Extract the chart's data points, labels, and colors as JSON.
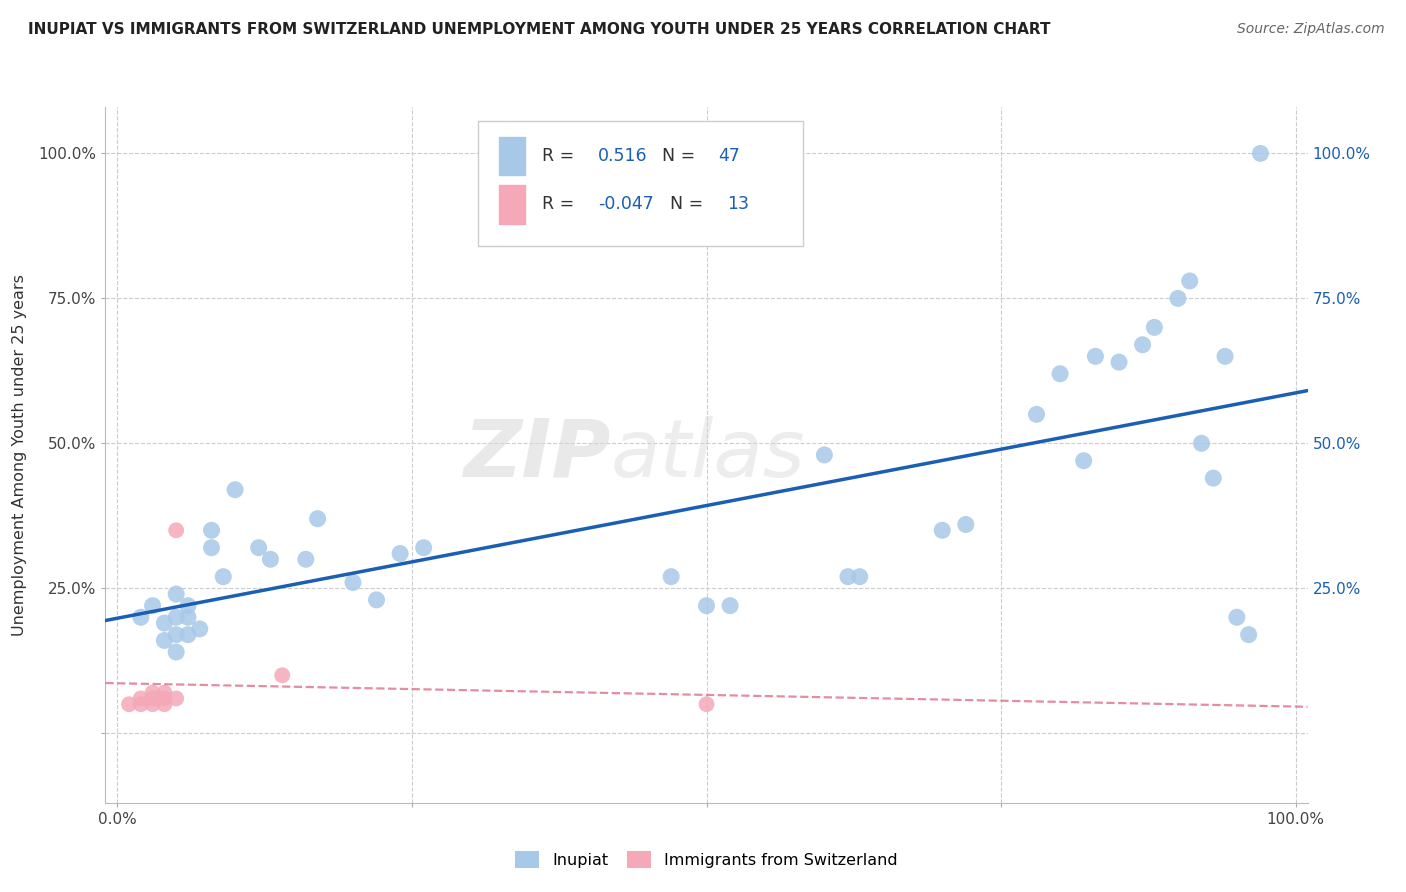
{
  "title": "INUPIAT VS IMMIGRANTS FROM SWITZERLAND UNEMPLOYMENT AMONG YOUTH UNDER 25 YEARS CORRELATION CHART",
  "source": "Source: ZipAtlas.com",
  "ylabel": "Unemployment Among Youth under 25 years",
  "xlim": [
    -0.01,
    1.01
  ],
  "ylim": [
    -0.12,
    1.08
  ],
  "ytick_values": [
    0.0,
    0.25,
    0.5,
    0.75,
    1.0
  ],
  "xtick_values": [
    0.0,
    0.25,
    0.5,
    0.75,
    1.0
  ],
  "inupiat_R": "0.516",
  "inupiat_N": "47",
  "swiss_R": "-0.047",
  "swiss_N": "13",
  "inupiat_color": "#a8c8e8",
  "swiss_color": "#f4a8b8",
  "inupiat_line_color": "#1a5fb4",
  "swiss_line_color": "#e07890",
  "blue_text": "#1a5fb4",
  "watermark": "ZIPatlas",
  "inupiat_x": [
    0.02,
    0.03,
    0.04,
    0.04,
    0.05,
    0.05,
    0.05,
    0.05,
    0.06,
    0.06,
    0.06,
    0.07,
    0.08,
    0.08,
    0.09,
    0.1,
    0.12,
    0.13,
    0.16,
    0.17,
    0.2,
    0.22,
    0.24,
    0.26,
    0.47,
    0.5,
    0.52,
    0.6,
    0.62,
    0.63,
    0.7,
    0.72,
    0.78,
    0.8,
    0.82,
    0.83,
    0.85,
    0.87,
    0.88,
    0.9,
    0.91,
    0.92,
    0.93,
    0.94,
    0.95,
    0.96,
    0.97
  ],
  "inupiat_y": [
    0.2,
    0.22,
    0.16,
    0.19,
    0.14,
    0.17,
    0.2,
    0.24,
    0.17,
    0.2,
    0.22,
    0.18,
    0.32,
    0.35,
    0.27,
    0.42,
    0.32,
    0.3,
    0.3,
    0.37,
    0.26,
    0.23,
    0.31,
    0.32,
    0.27,
    0.22,
    0.22,
    0.48,
    0.27,
    0.27,
    0.35,
    0.36,
    0.55,
    0.62,
    0.47,
    0.65,
    0.64,
    0.67,
    0.7,
    0.75,
    0.78,
    0.5,
    0.44,
    0.65,
    0.2,
    0.17,
    1.0
  ],
  "swiss_x": [
    0.01,
    0.02,
    0.02,
    0.03,
    0.03,
    0.03,
    0.04,
    0.04,
    0.04,
    0.05,
    0.05,
    0.14,
    0.5
  ],
  "swiss_y": [
    0.05,
    0.05,
    0.06,
    0.05,
    0.06,
    0.07,
    0.05,
    0.06,
    0.07,
    0.06,
    0.35,
    0.1,
    0.05
  ]
}
